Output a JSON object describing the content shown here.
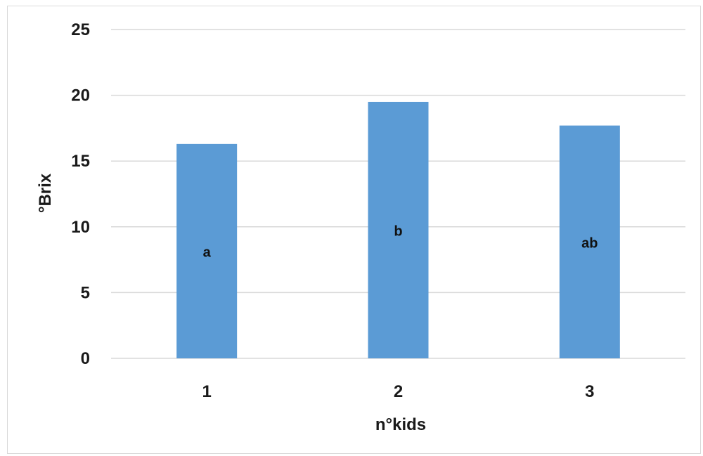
{
  "chart_data": {
    "type": "bar",
    "categories": [
      "1",
      "2",
      "3"
    ],
    "values": [
      16.3,
      19.5,
      17.7
    ],
    "bar_labels": [
      "a",
      "b",
      "ab"
    ],
    "xlabel": "n°kids",
    "ylabel": "°Brix",
    "ylim": [
      0,
      25
    ],
    "yticks": [
      "0",
      "5",
      "10",
      "15",
      "20",
      "25"
    ],
    "grid": true,
    "legend": "none",
    "bar_color": "#5b9bd5",
    "grid_color": "#d9d9d9"
  }
}
